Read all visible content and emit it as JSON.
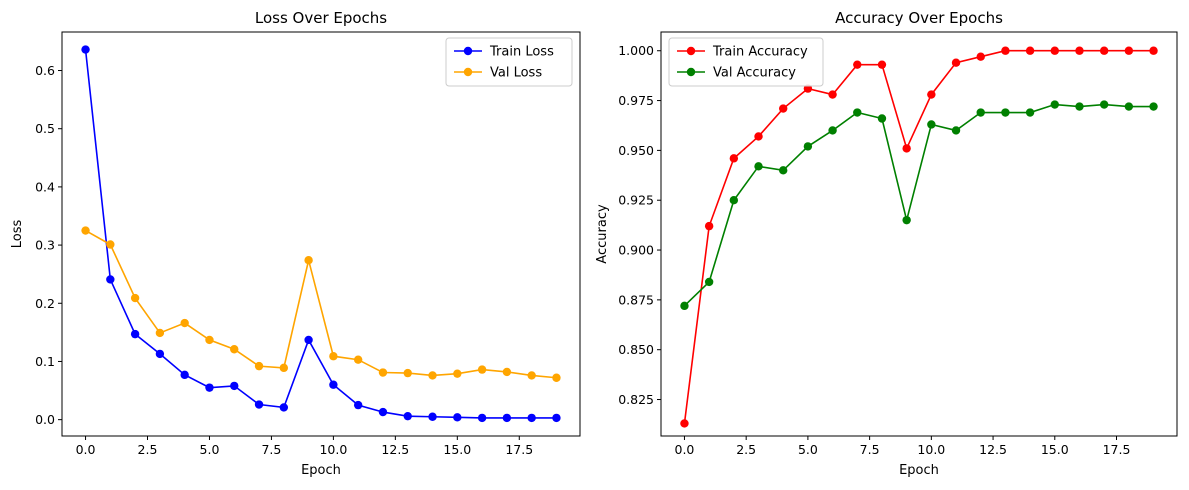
{
  "chart_data": [
    {
      "type": "line",
      "title": "Loss Over Epochs",
      "xlabel": "Epoch",
      "ylabel": "Loss",
      "xlim": [
        -0.95,
        19.95
      ],
      "ylim": [
        -0.0281,
        0.6662
      ],
      "xticks": [
        0,
        2.5,
        5,
        7.5,
        10,
        12.5,
        15,
        17.5
      ],
      "xtick_labels": [
        "0.0",
        "2.5",
        "5.0",
        "7.5",
        "10.0",
        "12.5",
        "15.0",
        "17.5"
      ],
      "yticks": [
        0,
        0.1,
        0.2,
        0.3,
        0.4,
        0.5,
        0.6
      ],
      "ytick_labels": [
        "0.0",
        "0.1",
        "0.2",
        "0.3",
        "0.4",
        "0.5",
        "0.6"
      ],
      "legend_position": "top-right",
      "grid": false,
      "x": [
        0,
        1,
        2,
        3,
        4,
        5,
        6,
        7,
        8,
        9,
        10,
        11,
        12,
        13,
        14,
        15,
        16,
        17,
        18,
        19
      ],
      "series": [
        {
          "name": "Train Loss",
          "color": "#0000ff",
          "values": [
            0.636,
            0.241,
            0.147,
            0.113,
            0.077,
            0.055,
            0.058,
            0.026,
            0.021,
            0.137,
            0.06,
            0.025,
            0.013,
            0.006,
            0.005,
            0.004,
            0.003,
            0.003,
            0.003,
            0.003
          ]
        },
        {
          "name": "Val Loss",
          "color": "#ffa500",
          "values": [
            0.325,
            0.301,
            0.209,
            0.149,
            0.166,
            0.137,
            0.121,
            0.092,
            0.089,
            0.274,
            0.109,
            0.103,
            0.081,
            0.08,
            0.076,
            0.079,
            0.086,
            0.082,
            0.076,
            0.072
          ]
        }
      ]
    },
    {
      "type": "line",
      "title": "Accuracy Over Epochs",
      "xlabel": "Epoch",
      "ylabel": "Accuracy",
      "xlim": [
        -0.95,
        19.95
      ],
      "ylim": [
        0.8067,
        1.0094
      ],
      "xticks": [
        0,
        2.5,
        5,
        7.5,
        10,
        12.5,
        15,
        17.5
      ],
      "xtick_labels": [
        "0.0",
        "2.5",
        "5.0",
        "7.5",
        "10.0",
        "12.5",
        "15.0",
        "17.5"
      ],
      "yticks": [
        0.825,
        0.85,
        0.875,
        0.9,
        0.925,
        0.95,
        0.975,
        1.0
      ],
      "ytick_labels": [
        "0.825",
        "0.850",
        "0.875",
        "0.900",
        "0.925",
        "0.950",
        "0.975",
        "1.000"
      ],
      "legend_position": "top-left",
      "grid": false,
      "x": [
        0,
        1,
        2,
        3,
        4,
        5,
        6,
        7,
        8,
        9,
        10,
        11,
        12,
        13,
        14,
        15,
        16,
        17,
        18,
        19
      ],
      "series": [
        {
          "name": "Train Accuracy",
          "color": "#ff0000",
          "values": [
            0.813,
            0.912,
            0.946,
            0.957,
            0.971,
            0.981,
            0.978,
            0.993,
            0.993,
            0.951,
            0.978,
            0.994,
            0.997,
            1.0,
            1.0,
            1.0,
            1.0,
            1.0,
            1.0,
            1.0
          ]
        },
        {
          "name": "Val Accuracy",
          "color": "#008000",
          "values": [
            0.872,
            0.884,
            0.925,
            0.942,
            0.94,
            0.952,
            0.96,
            0.969,
            0.966,
            0.915,
            0.963,
            0.96,
            0.969,
            0.969,
            0.969,
            0.973,
            0.972,
            0.973,
            0.972,
            0.972
          ]
        }
      ]
    }
  ]
}
